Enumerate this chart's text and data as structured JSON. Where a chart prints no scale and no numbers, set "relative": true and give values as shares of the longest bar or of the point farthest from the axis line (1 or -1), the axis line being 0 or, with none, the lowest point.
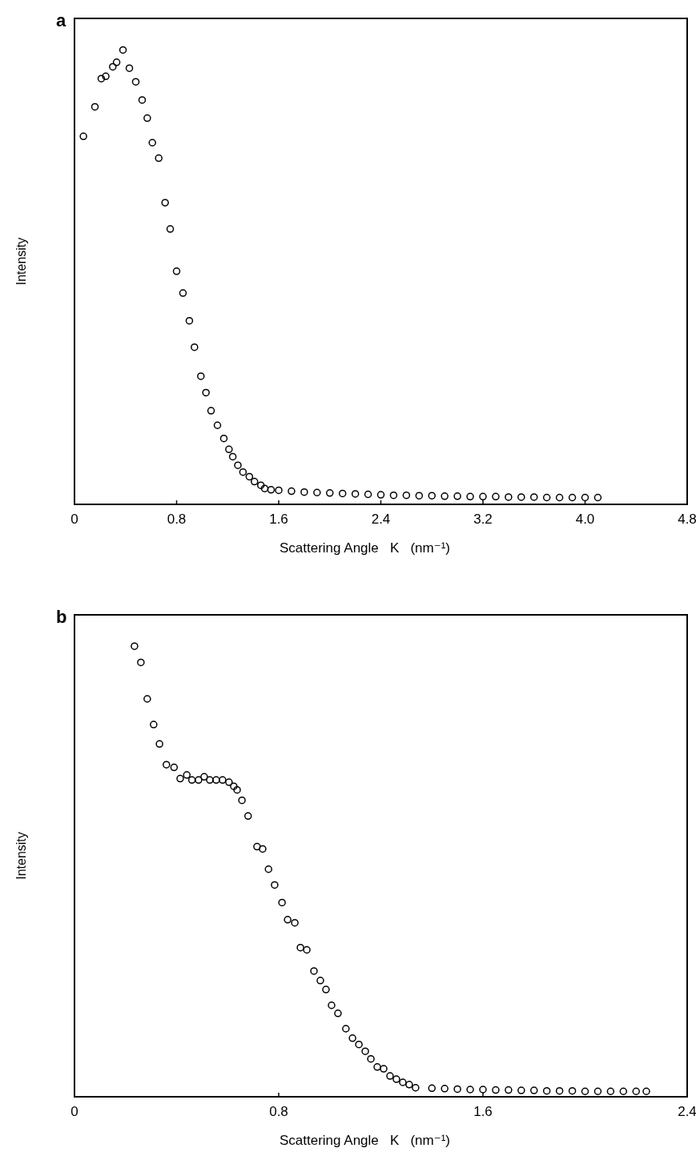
{
  "chart_data": [
    {
      "type": "scatter",
      "title": "a",
      "xlabel": "Scattering Angle   K   (nm⁻¹)",
      "ylabel": "Intensity",
      "relative": true,
      "marker": "circle",
      "xlim": [
        0,
        4.8
      ],
      "xticks": [
        0,
        0.8,
        1.6,
        2.4,
        3.2,
        {
          "value": 4,
          "label": "4.0"
        },
        4.8
      ],
      "series": [
        {
          "color": "#000000",
          "x": [
            0.07,
            0.16,
            0.21,
            0.245,
            0.3,
            0.33,
            0.38,
            0.43,
            0.48,
            0.53,
            0.57,
            0.61,
            0.66,
            0.71,
            0.75,
            0.8,
            0.85,
            0.9,
            0.94,
            0.99,
            1.03,
            1.07,
            1.12,
            1.17,
            1.21,
            1.24,
            1.28,
            1.32,
            1.37,
            1.41,
            1.46,
            1.49,
            1.54,
            1.6,
            1.7,
            1.8,
            1.9,
            2.0,
            2.1,
            2.2,
            2.3,
            2.4,
            2.5,
            2.6,
            2.7,
            2.8,
            2.9,
            3.0,
            3.1,
            3.2,
            3.3,
            3.4,
            3.5,
            3.6,
            3.7,
            3.8,
            3.9,
            4.0,
            4.1
          ],
          "values": [
            0.81,
            0.875,
            0.937,
            0.942,
            0.963,
            0.973,
            1,
            0.96,
            0.93,
            0.89,
            0.85,
            0.796,
            0.762,
            0.664,
            0.606,
            0.513,
            0.465,
            0.404,
            0.346,
            0.282,
            0.246,
            0.206,
            0.174,
            0.145,
            0.121,
            0.105,
            0.086,
            0.071,
            0.061,
            0.05,
            0.042,
            0.035,
            0.032,
            0.031,
            0.029,
            0.027,
            0.026,
            0.025,
            0.024,
            0.023,
            0.022,
            0.021,
            0.02,
            0.02,
            0.019,
            0.019,
            0.018,
            0.018,
            0.017,
            0.017,
            0.017,
            0.016,
            0.016,
            0.016,
            0.015,
            0.015,
            0.015,
            0.015,
            0.015
          ]
        }
      ]
    },
    {
      "type": "scatter",
      "title": "b",
      "xlabel": "Scattering Angle   K   (nm⁻¹)",
      "ylabel": "Intensity",
      "relative": true,
      "marker": "circle",
      "xlim": [
        0,
        2.4
      ],
      "xticks": [
        0,
        0.8,
        1.6,
        2.4
      ],
      "series": [
        {
          "color": "#000000",
          "x": [
            0.235,
            0.26,
            0.285,
            0.31,
            0.333,
            0.36,
            0.39,
            0.414,
            0.44,
            0.46,
            0.486,
            0.508,
            0.53,
            0.555,
            0.58,
            0.605,
            0.624,
            0.637,
            0.656,
            0.68,
            0.715,
            0.737,
            0.76,
            0.784,
            0.813,
            0.835,
            0.863,
            0.885,
            0.91,
            0.938,
            0.963,
            0.985,
            1.007,
            1.032,
            1.063,
            1.089,
            1.114,
            1.139,
            1.161,
            1.186,
            1.211,
            1.236,
            1.261,
            1.286,
            1.311,
            1.336,
            1.4,
            1.45,
            1.5,
            1.55,
            1.6,
            1.65,
            1.7,
            1.75,
            1.8,
            1.85,
            1.9,
            1.95,
            2.0,
            2.05,
            2.1,
            2.15,
            2.2,
            2.24
          ],
          "values": [
            1,
            0.964,
            0.883,
            0.826,
            0.783,
            0.737,
            0.731,
            0.706,
            0.714,
            0.703,
            0.703,
            0.71,
            0.703,
            0.703,
            0.703,
            0.698,
            0.689,
            0.681,
            0.658,
            0.623,
            0.555,
            0.55,
            0.505,
            0.47,
            0.431,
            0.393,
            0.386,
            0.331,
            0.326,
            0.279,
            0.258,
            0.238,
            0.203,
            0.185,
            0.151,
            0.13,
            0.116,
            0.101,
            0.084,
            0.066,
            0.062,
            0.046,
            0.039,
            0.032,
            0.027,
            0.02,
            0.019,
            0.018,
            0.017,
            0.016,
            0.016,
            0.015,
            0.015,
            0.014,
            0.014,
            0.013,
            0.013,
            0.013,
            0.012,
            0.012,
            0.012,
            0.012,
            0.012,
            0.012
          ]
        }
      ]
    }
  ]
}
